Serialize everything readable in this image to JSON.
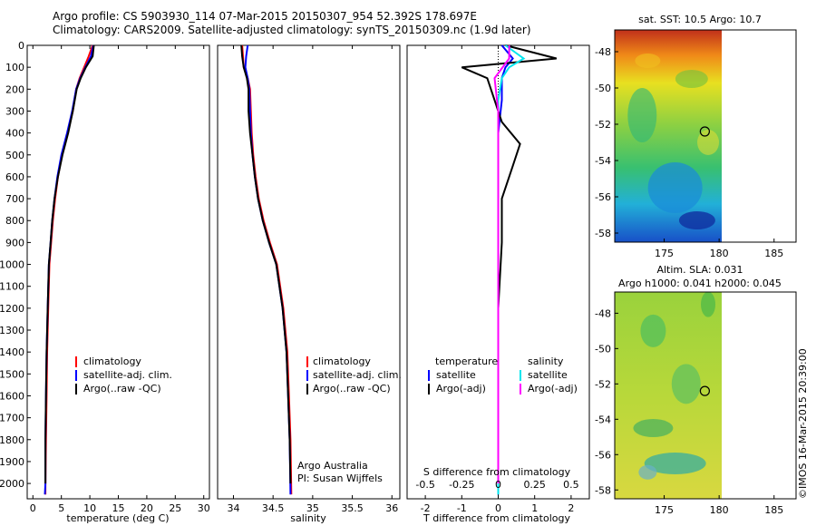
{
  "title": {
    "line1": "Argo profile: CS 5903930_114 07-Mar-2015 20150307_954 52.392S 178.697E",
    "line2": "Climatology: CARS2009. Satellite-adjusted climatology: synTS_20150309.nc (1.9d later)"
  },
  "colors": {
    "climatology": "#ff0000",
    "satellite": "#0000ff",
    "argo": "#000000",
    "satellite_s": "#00e5ee",
    "argo_s": "#ff00ff"
  },
  "legends": {
    "temp": [
      "climatology",
      "satellite-adj. clim.",
      "Argo(..raw -QC)"
    ],
    "sal": [
      "climatology",
      "satellite-adj. clim.",
      "Argo(..raw -QC)"
    ],
    "diff_head_t": "temperature",
    "diff_head_s": "salinity",
    "diff_t": [
      "satellite",
      "Argo(-adj)"
    ],
    "diff_s": [
      "satellite",
      "Argo(-adj)"
    ]
  },
  "credits": {
    "line1": "Argo Australia",
    "line2": "PI: Susan Wijffels"
  },
  "map_sst": {
    "title": "sat. SST: 10.5 Argo: 10.7"
  },
  "map_sla": {
    "title1": "Altim. SLA: 0.031",
    "title2": "Argo h1000: 0.041 h2000: 0.045"
  },
  "stamp": "©IMOS 16-Mar-2015 20:39:00",
  "chart_data": [
    {
      "type": "line",
      "xlabel": "temperature (deg C)",
      "ylabel": "",
      "xlim": [
        -1,
        31
      ],
      "ylim": [
        2070,
        0
      ],
      "xticks": [
        0,
        5,
        10,
        15,
        20,
        25,
        30
      ],
      "yticks": [
        0,
        100,
        200,
        300,
        400,
        500,
        600,
        700,
        800,
        900,
        1000,
        1100,
        1200,
        1300,
        1400,
        1500,
        1600,
        1700,
        1800,
        1900,
        2000
      ],
      "series": [
        {
          "name": "climatology",
          "color": "#ff0000",
          "x": [
            10.5,
            9.8,
            9.0,
            8.2,
            7.6,
            7.0,
            6.1,
            5.1,
            4.4,
            3.9,
            3.5,
            3.2,
            2.9,
            2.7,
            2.5,
            2.4,
            2.3,
            2.2,
            2.2
          ],
          "y": [
            0,
            50,
            100,
            150,
            200,
            300,
            400,
            500,
            600,
            700,
            800,
            900,
            1000,
            1200,
            1400,
            1600,
            1800,
            2000,
            2050
          ]
        },
        {
          "name": "satellite-adj. clim.",
          "color": "#0000ff",
          "x": [
            10.6,
            10.2,
            9.2,
            8.3,
            7.6,
            6.9,
            6.0,
            5.0,
            4.3,
            3.8,
            3.4,
            3.1,
            2.8,
            2.6,
            2.4,
            2.3,
            2.2,
            2.2,
            2.1
          ],
          "y": [
            0,
            50,
            100,
            150,
            200,
            300,
            400,
            500,
            600,
            700,
            800,
            900,
            1000,
            1200,
            1400,
            1600,
            1800,
            2000,
            2050
          ]
        },
        {
          "name": "Argo(..raw -QC)",
          "color": "#000000",
          "x": [
            10.7,
            10.5,
            9.3,
            8.4,
            7.7,
            7.0,
            6.2,
            5.2,
            4.4,
            3.8,
            3.4,
            3.1,
            2.8,
            2.6,
            2.4,
            2.3,
            2.2,
            2.2
          ],
          "y": [
            0,
            50,
            100,
            150,
            200,
            300,
            400,
            500,
            600,
            700,
            800,
            900,
            1000,
            1200,
            1400,
            1600,
            1800,
            2000
          ]
        }
      ]
    },
    {
      "type": "line",
      "xlabel": "salinity",
      "ylabel": "",
      "xlim": [
        33.8,
        36.1
      ],
      "ylim": [
        2070,
        0
      ],
      "xticks": [
        34,
        34.5,
        35,
        35.5,
        36
      ],
      "series": [
        {
          "name": "climatology",
          "color": "#ff0000",
          "x": [
            34.11,
            34.12,
            34.13,
            34.18,
            34.21,
            34.22,
            34.23,
            34.25,
            34.28,
            34.32,
            34.38,
            34.46,
            34.55,
            34.63,
            34.68,
            34.7,
            34.72,
            34.73
          ],
          "y": [
            0,
            50,
            100,
            150,
            200,
            300,
            400,
            500,
            600,
            700,
            800,
            900,
            1000,
            1200,
            1400,
            1600,
            1800,
            2050
          ]
        },
        {
          "name": "satellite-adj. clim.",
          "color": "#0000ff",
          "x": [
            34.18,
            34.16,
            34.15,
            34.18,
            34.2,
            34.21,
            34.22,
            34.24,
            34.27,
            34.31,
            34.37,
            34.45,
            34.54,
            34.62,
            34.67,
            34.69,
            34.71,
            34.72
          ],
          "y": [
            0,
            50,
            100,
            150,
            200,
            300,
            400,
            500,
            600,
            700,
            800,
            900,
            1000,
            1200,
            1400,
            1600,
            1800,
            2050
          ]
        },
        {
          "name": "Argo(..raw -QC)",
          "color": "#000000",
          "x": [
            34.1,
            34.11,
            34.13,
            34.17,
            34.19,
            34.19,
            34.21,
            34.24,
            34.27,
            34.31,
            34.37,
            34.45,
            34.54,
            34.62,
            34.67,
            34.69,
            34.71,
            34.72
          ],
          "y": [
            0,
            50,
            100,
            150,
            200,
            300,
            400,
            500,
            600,
            700,
            800,
            900,
            1000,
            1200,
            1400,
            1600,
            1800,
            2000
          ]
        }
      ]
    },
    {
      "type": "line",
      "xlabel": "T difference from climatology",
      "x2label": "S difference from climatology",
      "xlim": [
        -2.5,
        2.5
      ],
      "ylim": [
        2070,
        0
      ],
      "xticks": [
        -2,
        -1,
        0,
        1,
        2
      ],
      "x2ticks": [
        -0.5,
        -0.25,
        0,
        0.25,
        0.5
      ],
      "series": [
        {
          "name": "satellite",
          "group": "temperature",
          "color": "#0000ff",
          "x": [
            0.1,
            0.4,
            0.2,
            0.1,
            0.1,
            0.0,
            0.0,
            0.0,
            0.0,
            0.0,
            0.0
          ],
          "y": [
            0,
            60,
            100,
            150,
            250,
            400,
            600,
            900,
            1200,
            1600,
            2050
          ]
        },
        {
          "name": "Argo(-adj)",
          "group": "temperature",
          "color": "#000000",
          "x": [
            0.2,
            1.6,
            -1.0,
            -0.3,
            -0.1,
            0.1,
            0.6,
            0.4,
            0.1,
            0.1,
            0.0,
            0.0,
            0.0
          ],
          "y": [
            0,
            60,
            100,
            150,
            250,
            350,
            450,
            550,
            700,
            900,
            1200,
            1600,
            2000
          ]
        },
        {
          "name": "satellite",
          "group": "salinity",
          "color": "#00e5ee",
          "x": [
            0.2,
            0.7,
            0.3,
            0.1,
            0.0,
            0.0,
            0.0,
            0.0,
            0.0,
            0.0
          ],
          "y": [
            0,
            60,
            100,
            150,
            250,
            400,
            700,
            1000,
            1500,
            2050
          ]
        },
        {
          "name": "Argo(-adj)",
          "group": "salinity",
          "color": "#ff00ff",
          "x": [
            0.3,
            0.3,
            -0.1,
            0.0,
            0.0,
            0.0,
            0.0,
            0.0
          ],
          "y": [
            0,
            60,
            150,
            300,
            500,
            1000,
            1500,
            2000
          ]
        }
      ]
    },
    {
      "type": "heatmap",
      "title": "sat. SST: 10.5 Argo: 10.7",
      "xlim": [
        170.5,
        187
      ],
      "ylim": [
        -58.5,
        -46.8
      ],
      "xticks": [
        175,
        180,
        185
      ],
      "yticks": [
        -48,
        -50,
        -52,
        -54,
        -56,
        -58
      ],
      "marker": {
        "lon": 178.7,
        "lat": -52.4
      }
    },
    {
      "type": "heatmap",
      "title": "Altim. SLA: 0.031",
      "xlim": [
        170.5,
        187
      ],
      "ylim": [
        -58.5,
        -46.8
      ],
      "xticks": [
        175,
        180,
        185
      ],
      "yticks": [
        -48,
        -50,
        -52,
        -54,
        -56,
        -58
      ],
      "marker": {
        "lon": 178.7,
        "lat": -52.4
      }
    }
  ]
}
